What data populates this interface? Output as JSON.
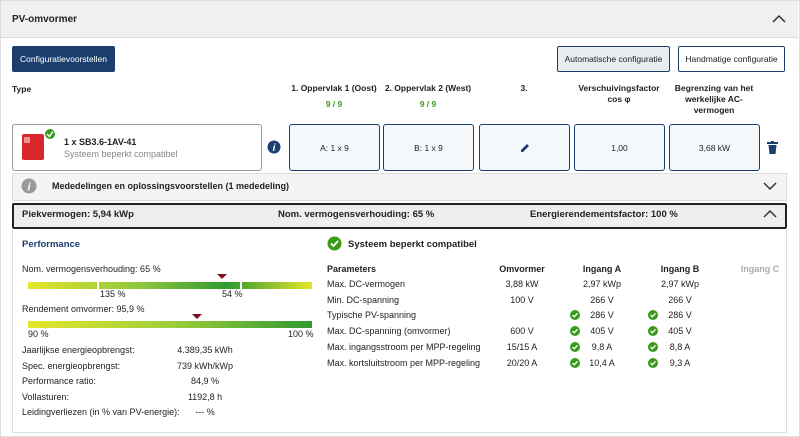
{
  "header": {
    "title": "PV-omvormer"
  },
  "buttons": {
    "proposals": "Configuratievoorstellen",
    "automatic": "Automatische configuratie",
    "manual": "Handmatige configuratie"
  },
  "columns": {
    "type": "Type",
    "surface1": {
      "label": "1. Oppervlak 1 (Oost)",
      "count": "9 / 9"
    },
    "surface2": {
      "label": "2. Oppervlak 2 (West)",
      "count": "9 / 9"
    },
    "surface3": "3.",
    "cosphi": "Verschuivingsfactor cos φ",
    "ac_limit": "Begrenzing van het werkelijke AC-vermogen"
  },
  "inverter_row": {
    "name": "1 x SB3.6-1AV-41",
    "status": "Systeem beperkt compatibel",
    "surface1": "A: 1 x 9",
    "surface2": "B: 1 x 9",
    "cosphi": "1,00",
    "ac_limit": "3,68 kW"
  },
  "notice": "Mededelingen en oplossingsvoorstellen (1 mededeling)",
  "summary": {
    "peak": "Piekvermogen: 5,94 kWp",
    "ratio": "Nom. vermogensverhouding: 65 %",
    "yield_factor": "Energierendementsfactor: 100 %"
  },
  "performance": {
    "title": "Performance",
    "ratio_gauge": {
      "label": "Nom. vermogensverhouding: 65 %",
      "left": "135 %",
      "right": "54 %"
    },
    "efficiency_gauge": {
      "label": "Rendement omvormer: 95,9 %",
      "left": "90 %",
      "right": "100 %"
    },
    "stats": [
      [
        "Jaarlijkse energieopbrengst:",
        "4.389,35 kWh"
      ],
      [
        "Spec. energieopbrengst:",
        "739 kWh/kWp"
      ],
      [
        "Performance ratio:",
        "84,9 %"
      ],
      [
        "Vollasturen:",
        "1192,8 h"
      ],
      [
        "Leidingverliezen (in % van PV-energie):",
        "--- %"
      ]
    ]
  },
  "compatibility": {
    "title": "Systeem beperkt compatibel",
    "headers": [
      "Parameters",
      "Omvormer",
      "Ingang A",
      "Ingang B",
      "Ingang C"
    ],
    "rows": [
      {
        "name": "Max. DC-vermogen",
        "inverter": "3,88 kW",
        "a": "2,97 kWp",
        "b": "2,97 kWp",
        "checked": false
      },
      {
        "name": "Min. DC-spanning",
        "inverter": "100 V",
        "a": "266 V",
        "b": "266 V",
        "checked": false
      },
      {
        "name": "Typische PV-spanning",
        "inverter": null,
        "a": "286 V",
        "b": "286 V",
        "checked": true
      },
      {
        "name": "Max. DC-spanning (omvormer)",
        "inverter": "600 V",
        "a": "405 V",
        "b": "405 V",
        "checked": true
      },
      {
        "name": "Max. ingangsstroom per MPP-regeling",
        "inverter": "15/15 A",
        "a": "9,8 A",
        "b": "8,8 A",
        "checked": true
      },
      {
        "name": "Max. kortsluitstroom per MPP-regeling",
        "inverter": "20/20 A",
        "a": "10,4 A",
        "b": "9,3 A",
        "checked": true
      }
    ]
  }
}
